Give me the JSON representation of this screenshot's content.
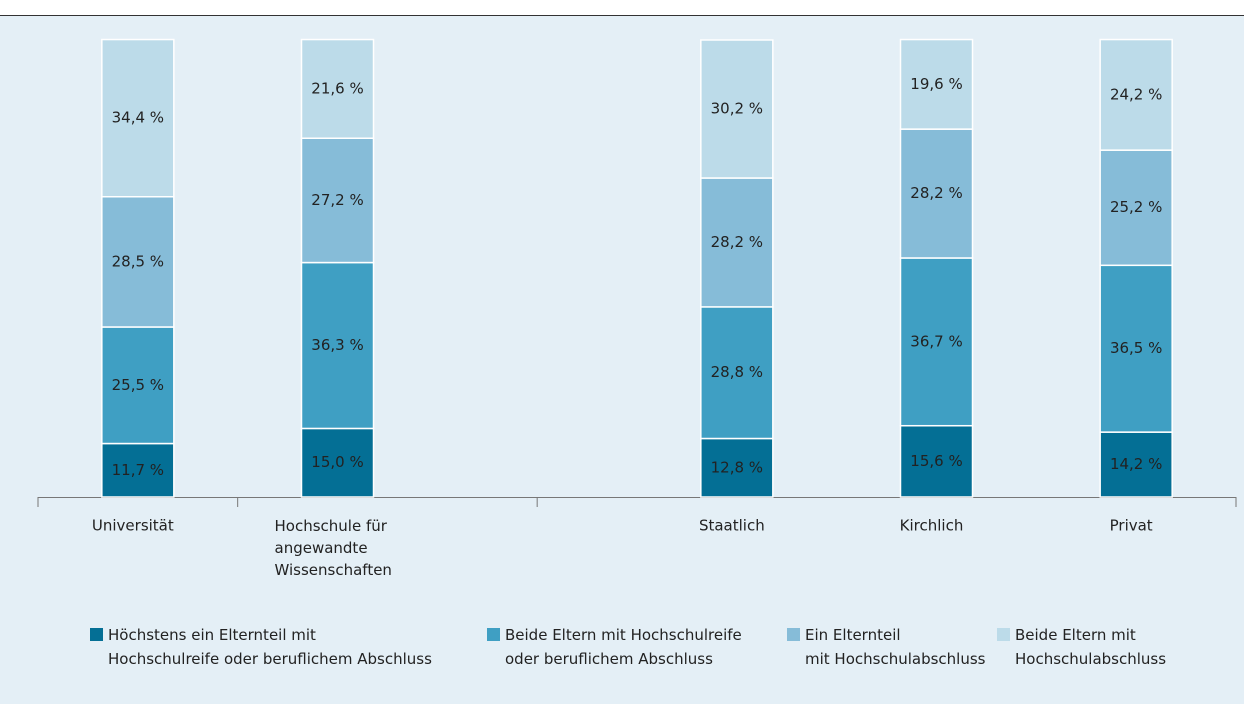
{
  "chart_data": {
    "type": "stacked-bar",
    "categories": [
      "Universität",
      "Hochschule für angewandte Wissenschaften",
      null,
      "Staatlich",
      "Kirchlich",
      "Privat"
    ],
    "ylim": [
      0,
      100
    ],
    "series": [
      {
        "name": "Höchstens ein Elternteil mit Hochschulreife oder beruflichem Abschluss",
        "color": "#046f95",
        "values": [
          11.7,
          15.0,
          null,
          12.8,
          15.6,
          14.2
        ],
        "value_labels": [
          "11,7 %",
          "15,0 %",
          null,
          "12,8 %",
          "15,6 %",
          "14,2 %"
        ]
      },
      {
        "name": "Beide Eltern mit Hochschulreife oder beruflichem Abschluss",
        "color": "#3f9fc3",
        "values": [
          25.5,
          36.3,
          null,
          28.8,
          36.7,
          36.5
        ],
        "value_labels": [
          "25,5 %",
          "36,3 %",
          null,
          "28,8 %",
          "36,7 %",
          "36,5 %"
        ]
      },
      {
        "name": "Ein Elternteil mit Hochschulabschluss",
        "color": "#86bcd8",
        "values": [
          28.5,
          27.2,
          null,
          28.2,
          28.2,
          25.2
        ],
        "value_labels": [
          "28,5 %",
          "27,2 %",
          null,
          "28,2 %",
          "28,2 %",
          "25,2 %"
        ]
      },
      {
        "name": "Beide Eltern mit Hochschulabschluss",
        "color": "#bcdbe9",
        "values": [
          34.4,
          21.6,
          null,
          30.2,
          19.6,
          24.2
        ],
        "value_labels": [
          "34,4 %",
          "21,6 %",
          null,
          "30,2 %",
          "19,6 %",
          "24,2 %"
        ]
      }
    ]
  }
}
